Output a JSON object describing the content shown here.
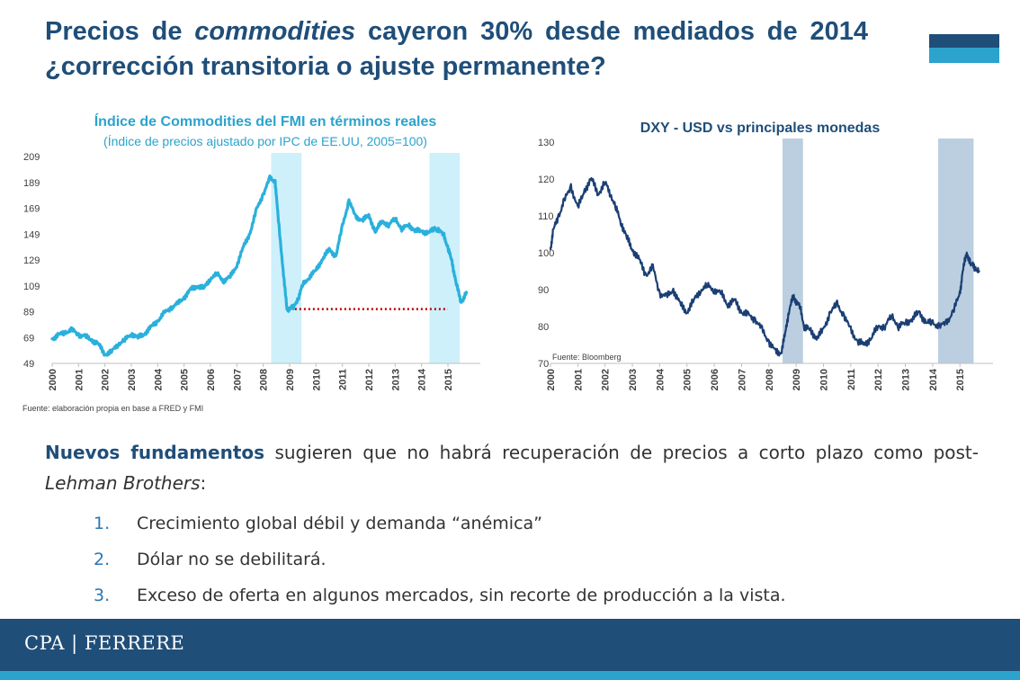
{
  "slide": {
    "title_part1": "Precios de ",
    "title_em": "commodities",
    "title_part2": " cayeron 30% desde mediados de 2014 ¿corrección transitoria o ajuste permanente?",
    "body_intro_highlight": "Nuevos fundamentos",
    "body_intro_rest": " sugieren que no habrá recuperación de precios a corto plazo como post-",
    "body_intro_em": "Lehman Brothers",
    "body_intro_end": ":",
    "points": [
      {
        "num": "1.",
        "text": "Crecimiento global débil y demanda “anémica”"
      },
      {
        "num": "2.",
        "text": "Dólar no se debilitará."
      },
      {
        "num": "3.",
        "text": "Exceso de oferta en algunos mercados, sin recorte de producción a la vista."
      }
    ],
    "footer_brand": "CPA | FERRERE"
  },
  "colors": {
    "title": "#1f4e79",
    "accent": "#2ba3cd",
    "chart1_line": "#2ab0dc",
    "chart1_band": "#cdf0fb",
    "chart2_line": "#1b3f74",
    "chart2_band": "#bccfe0",
    "reference_line": "#c00000"
  },
  "chart_data": [
    {
      "type": "line",
      "title": "Índice de Commodities del FMI en términos reales",
      "subtitle": "(Índice de precios ajustado por IPC de EE.UU, 2005=100)",
      "source": "Fuente: elaboración propia en base a FRED y FMI",
      "x_ticks": [
        "2000",
        "2001",
        "2002",
        "2003",
        "2004",
        "2005",
        "2006",
        "2007",
        "2008",
        "2009",
        "2010",
        "2011",
        "2012",
        "2013",
        "2014",
        "2015"
      ],
      "y_ticks": [
        49,
        69,
        89,
        109,
        129,
        149,
        169,
        189,
        209
      ],
      "xlim": [
        2000,
        2015.75
      ],
      "ylim": [
        49,
        209
      ],
      "grid": false,
      "series": [
        {
          "x": [
            2000.0,
            2000.25,
            2000.5,
            2000.75,
            2001.0,
            2001.25,
            2001.5,
            2001.75,
            2002.0,
            2002.25,
            2002.5,
            2002.75,
            2003.0,
            2003.25,
            2003.5,
            2003.75,
            2004.0,
            2004.25,
            2004.5,
            2004.75,
            2005.0,
            2005.25,
            2005.5,
            2005.75,
            2006.0,
            2006.25,
            2006.5,
            2006.75,
            2007.0,
            2007.25,
            2007.5,
            2007.75,
            2008.0,
            2008.25,
            2008.45,
            2008.55,
            2008.75,
            2008.9,
            2009.0,
            2009.15,
            2009.35,
            2009.5,
            2009.75,
            2010.0,
            2010.25,
            2010.5,
            2010.75,
            2011.0,
            2011.25,
            2011.5,
            2011.75,
            2012.0,
            2012.25,
            2012.5,
            2012.75,
            2013.0,
            2013.25,
            2013.5,
            2013.75,
            2014.0,
            2014.25,
            2014.5,
            2014.65,
            2014.85,
            2015.0,
            2015.15,
            2015.3,
            2015.5,
            2015.7
          ],
          "y": [
            68,
            71,
            73,
            75,
            71,
            70,
            67,
            64,
            56,
            58,
            64,
            67,
            72,
            69,
            72,
            77,
            82,
            88,
            92,
            95,
            100,
            106,
            109,
            107,
            115,
            118,
            113,
            116,
            125,
            139,
            150,
            168,
            180,
            192,
            190,
            165,
            122,
            90,
            92,
            92,
            101,
            110,
            116,
            121,
            130,
            137,
            132,
            155,
            175,
            162,
            160,
            163,
            151,
            159,
            156,
            161,
            153,
            156,
            152,
            151,
            150,
            153,
            152,
            148,
            138,
            128,
            112,
            96,
            104
          ]
        }
      ],
      "annotations": [
        {
          "type": "shaded_period",
          "from": 2008.3,
          "to": 2009.45
        },
        {
          "type": "shaded_period",
          "from": 2014.3,
          "to": 2015.45
        },
        {
          "type": "reference_line",
          "y": 91,
          "from": 2009.2,
          "to": 2015.0,
          "style": "dotted red"
        }
      ]
    },
    {
      "type": "line",
      "title": "DXY - USD vs principales monedas",
      "source": "Fuente: Bloomberg",
      "x_ticks": [
        "2000",
        "2001",
        "2002",
        "2003",
        "2004",
        "2005",
        "2006",
        "2007",
        "2008",
        "2009",
        "2010",
        "2011",
        "2012",
        "2013",
        "2014",
        "2015"
      ],
      "y_ticks": [
        70,
        80,
        90,
        100,
        110,
        120,
        130
      ],
      "xlim": [
        2000,
        2015.75
      ],
      "ylim": [
        70,
        130
      ],
      "grid": false,
      "series": [
        {
          "x": [
            2000.0,
            2000.1,
            2000.3,
            2000.5,
            2000.75,
            2001.0,
            2001.25,
            2001.5,
            2001.75,
            2002.0,
            2002.2,
            2002.4,
            2002.6,
            2002.8,
            2003.0,
            2003.25,
            2003.5,
            2003.75,
            2004.0,
            2004.25,
            2004.5,
            2004.75,
            2005.0,
            2005.25,
            2005.5,
            2005.75,
            2006.0,
            2006.25,
            2006.5,
            2006.75,
            2007.0,
            2007.25,
            2007.5,
            2007.75,
            2008.0,
            2008.25,
            2008.45,
            2008.6,
            2008.75,
            2008.9,
            2009.0,
            2009.15,
            2009.3,
            2009.5,
            2009.75,
            2010.0,
            2010.25,
            2010.5,
            2010.75,
            2011.0,
            2011.25,
            2011.5,
            2011.75,
            2012.0,
            2012.25,
            2012.5,
            2012.75,
            2013.0,
            2013.25,
            2013.5,
            2013.75,
            2014.0,
            2014.25,
            2014.5,
            2014.75,
            2015.0,
            2015.1,
            2015.25,
            2015.4,
            2015.55,
            2015.7
          ],
          "y": [
            101,
            106,
            110,
            114,
            118,
            112,
            117,
            120,
            116,
            119,
            116,
            112,
            108,
            104,
            101,
            98,
            94,
            96,
            89,
            88,
            90,
            86,
            84,
            87,
            90,
            91,
            90,
            89,
            86,
            87,
            84,
            83,
            82,
            79,
            76,
            73,
            73,
            78,
            85,
            88,
            87,
            85,
            80,
            79,
            77,
            79,
            84,
            86,
            83,
            79,
            76,
            75,
            77,
            80,
            80,
            83,
            80,
            81,
            82,
            84,
            81,
            81,
            80,
            81,
            84,
            89,
            95,
            100,
            97,
            96,
            95
          ]
        }
      ],
      "annotations": [
        {
          "type": "shaded_period",
          "from": 2008.5,
          "to": 2009.25
        },
        {
          "type": "shaded_period",
          "from": 2014.2,
          "to": 2015.5
        }
      ]
    }
  ]
}
